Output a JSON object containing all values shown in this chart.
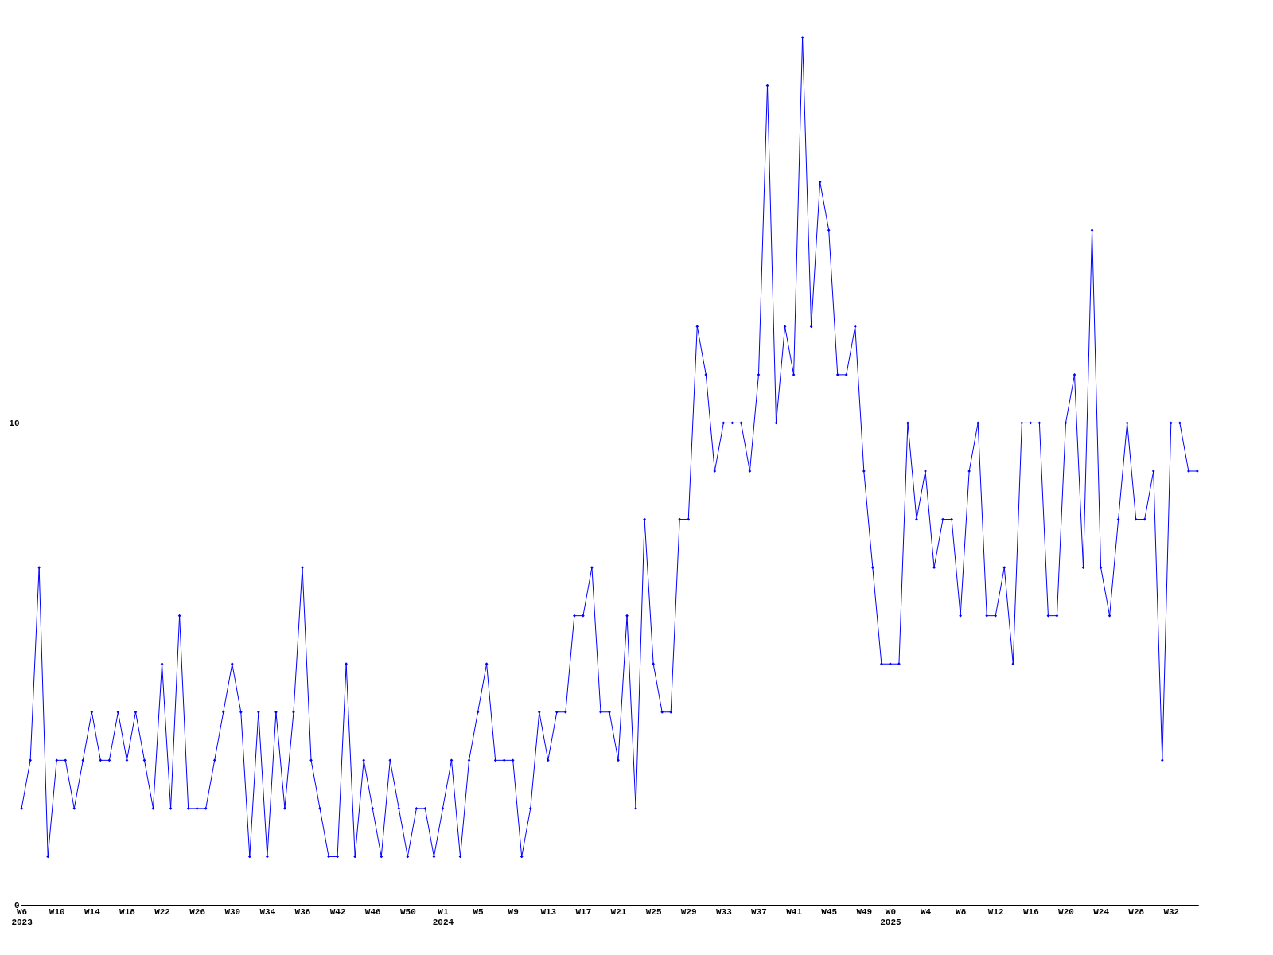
{
  "chart_data": {
    "type": "line",
    "categories": [
      "W6\n2023",
      null,
      null,
      null,
      "W10",
      null,
      null,
      null,
      "W14",
      null,
      null,
      null,
      "W18",
      null,
      null,
      null,
      "W22",
      null,
      null,
      null,
      "W26",
      null,
      null,
      null,
      "W30",
      null,
      null,
      null,
      "W34",
      null,
      null,
      null,
      "W38",
      null,
      null,
      null,
      "W42",
      null,
      null,
      null,
      "W46",
      null,
      null,
      null,
      "W50",
      null,
      null,
      null,
      "W1\n2024",
      null,
      null,
      null,
      "W5",
      null,
      null,
      null,
      "W9",
      null,
      null,
      null,
      "W13",
      null,
      null,
      null,
      "W17",
      null,
      null,
      null,
      "W21",
      null,
      null,
      null,
      "W25",
      null,
      null,
      null,
      "W29",
      null,
      null,
      null,
      "W33",
      null,
      null,
      null,
      "W37",
      null,
      null,
      null,
      "W41",
      null,
      null,
      null,
      "W45",
      null,
      null,
      null,
      "W49",
      null,
      null,
      "W0\n2025",
      null,
      null,
      null,
      "W4",
      null,
      null,
      null,
      "W8",
      null,
      null,
      null,
      "W12",
      null,
      null,
      null,
      "W16",
      null,
      null,
      null,
      "W20",
      null,
      null,
      null,
      "W24",
      null,
      null,
      null,
      "W28",
      null,
      null,
      null,
      "W32",
      null,
      null,
      null
    ],
    "series": [
      {
        "color": "#0000ff",
        "values": [
          2,
          3,
          7,
          1,
          3,
          3,
          2,
          3,
          4,
          3,
          3,
          4,
          3,
          4,
          3,
          2,
          5,
          2,
          6,
          2,
          2,
          2,
          3,
          4,
          5,
          4,
          1,
          4,
          1,
          4,
          2,
          4,
          7,
          3,
          2,
          1,
          1,
          5,
          1,
          3,
          2,
          1,
          3,
          2,
          1,
          2,
          2,
          1,
          2,
          3,
          1,
          3,
          4,
          5,
          3,
          3,
          3,
          1,
          2,
          4,
          3,
          4,
          4,
          6,
          6,
          7,
          4,
          4,
          3,
          6,
          2,
          8,
          5,
          4,
          4,
          8,
          8,
          12,
          11,
          9,
          10,
          10,
          10,
          9,
          11,
          17,
          10,
          12,
          11,
          18,
          12,
          15,
          14,
          11,
          11,
          12,
          9,
          7,
          5,
          5,
          5,
          10,
          8,
          9,
          7,
          8,
          8,
          6,
          9,
          10,
          6,
          6,
          7,
          5,
          10,
          10,
          10,
          6,
          6,
          10,
          11,
          7,
          14,
          7,
          6,
          8,
          10,
          8,
          8,
          9,
          3,
          10,
          10,
          9,
          9
        ]
      }
    ],
    "ylim": [
      0,
      18
    ],
    "yticks": [
      0,
      10
    ],
    "grid": "y",
    "marker": "diamond",
    "line_style": "solid"
  }
}
